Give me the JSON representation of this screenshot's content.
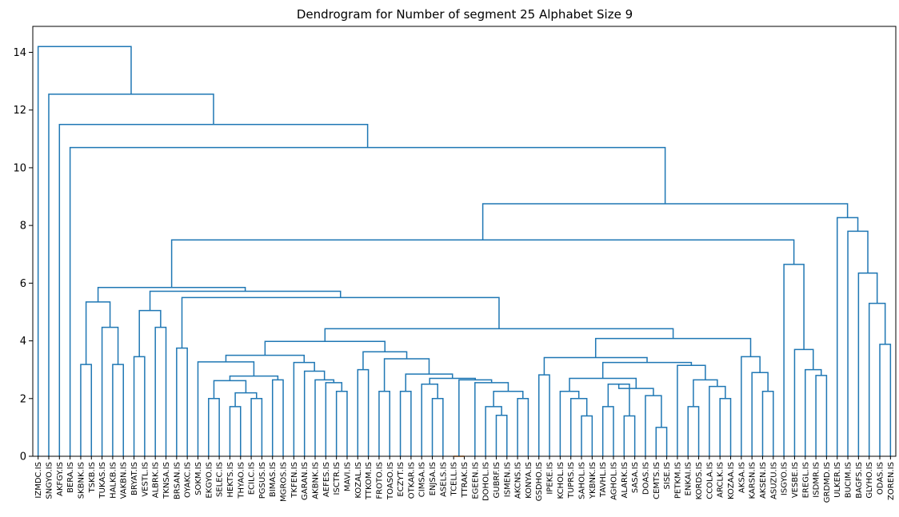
{
  "chart_data": {
    "type": "dendrogram",
    "title": "Dendrogram for Number of segment 25 Alphabet Size 9",
    "color": "#1f77b4",
    "leaves": [
      "IZMDC.IS",
      "SNGYO.IS",
      "AKFGY.IS",
      "BERA.IS",
      "SKBNK.IS",
      "TSKB.IS",
      "TUKAS.IS",
      "HALKB.IS",
      "VAKBN.IS",
      "BRYAT.IS",
      "VESTL.IS",
      "ALBRK.IS",
      "TKNSA.IS",
      "BRSAN.IS",
      "OYAKC.IS",
      "SOKM.IS",
      "EKGYO.IS",
      "SELEC.IS",
      "HEKTS.IS",
      "THYAO.IS",
      "ECILC.IS",
      "PGSUS.IS",
      "BIMAS.IS",
      "MGROS.IS",
      "TKFEN.IS",
      "GARAN.IS",
      "AKBNK.IS",
      "AEFES.IS",
      "ISCTR.IS",
      "MAVI.IS",
      "KOZAL.IS",
      "TTKOM.IS",
      "FROTO.IS",
      "TOASO.IS",
      "ECZYT.IS",
      "OTKAR.IS",
      "CIMSA.IS",
      "ENJSA.IS",
      "ASELS.IS",
      "TCELL.IS",
      "TTRAK.IS",
      "EGEEN.IS",
      "DOHOL.IS",
      "GUBRF.IS",
      "ISMEN.IS",
      "AKCNS.IS",
      "KONYA.IS",
      "GSDHO.IS",
      "IPEKE.IS",
      "KCHOL.IS",
      "TUPRS.IS",
      "SAHOL.IS",
      "YKBNK.IS",
      "TAVHL.IS",
      "AGHOL.IS",
      "ALARK.IS",
      "SASA.IS",
      "DOAS.IS",
      "CEMTS.IS",
      "SISE.IS",
      "PETKM.IS",
      "ENKAI.IS",
      "KORDS.IS",
      "CCOLA.IS",
      "ARCLK.IS",
      "KOZAA.IS",
      "AKSA.IS",
      "KARSN.IS",
      "AKSEN.IS",
      "ASUZU.IS",
      "ISGYO.IS",
      "VESBE.IS",
      "EREGL.IS",
      "ISDMR.IS",
      "GRDMD.IS",
      "ULKER.IS",
      "BUCIM.IS",
      "BAGFS.IS",
      "GLYHO.IS",
      "ODAS.IS",
      "ZOREN.IS"
    ],
    "merges": [
      {
        "children": [
          4,
          5
        ],
        "height": 3.18
      },
      {
        "children": [
          7,
          8
        ],
        "height": 3.18
      },
      {
        "children": [
          6,
          82
        ],
        "height": 4.47
      },
      {
        "children": [
          81,
          83
        ],
        "height": 5.35
      },
      {
        "children": [
          9,
          10
        ],
        "height": 3.45
      },
      {
        "children": [
          11,
          12
        ],
        "height": 4.47
      },
      {
        "children": [
          85,
          86
        ],
        "height": 5.05
      },
      {
        "children": [
          13,
          14
        ],
        "height": 3.75
      },
      {
        "children": [
          16,
          17
        ],
        "height": 2.0
      },
      {
        "children": [
          18,
          19
        ],
        "height": 1.72
      },
      {
        "children": [
          20,
          21
        ],
        "height": 2.0
      },
      {
        "children": [
          90,
          91
        ],
        "height": 2.2
      },
      {
        "children": [
          89,
          92
        ],
        "height": 2.62
      },
      {
        "children": [
          22,
          23
        ],
        "height": 2.65
      },
      {
        "children": [
          93,
          94
        ],
        "height": 2.78
      },
      {
        "children": [
          15,
          95
        ],
        "height": 3.27
      },
      {
        "children": [
          28,
          29
        ],
        "height": 2.25
      },
      {
        "children": [
          27,
          97
        ],
        "height": 2.55
      },
      {
        "children": [
          26,
          98
        ],
        "height": 2.65
      },
      {
        "children": [
          25,
          99
        ],
        "height": 2.95
      },
      {
        "children": [
          24,
          100
        ],
        "height": 3.25
      },
      {
        "children": [
          96,
          101
        ],
        "height": 3.5
      },
      {
        "children": [
          30,
          31
        ],
        "height": 3.0
      },
      {
        "children": [
          32,
          33
        ],
        "height": 2.25
      },
      {
        "children": [
          34,
          35
        ],
        "height": 2.25
      },
      {
        "children": [
          37,
          38
        ],
        "height": 2.0
      },
      {
        "children": [
          36,
          106
        ],
        "height": 2.5
      },
      {
        "children": [
          39,
          40
        ],
        "height": 0,
        "color": "#ff7f0e"
      },
      {
        "children": [
          43,
          44
        ],
        "height": 1.42
      },
      {
        "children": [
          42,
          109
        ],
        "height": 1.72
      },
      {
        "children": [
          45,
          46
        ],
        "height": 2.0
      },
      {
        "children": [
          110,
          111
        ],
        "height": 2.25
      },
      {
        "children": [
          41,
          112
        ],
        "height": 2.55
      },
      {
        "children": [
          108,
          113
        ],
        "height": 2.65
      },
      {
        "children": [
          107,
          114
        ],
        "height": 2.7
      },
      {
        "children": [
          105,
          115
        ],
        "height": 2.85
      },
      {
        "children": [
          104,
          116
        ],
        "height": 3.38
      },
      {
        "children": [
          103,
          117
        ],
        "height": 3.62
      },
      {
        "children": [
          102,
          118
        ],
        "height": 3.98
      },
      {
        "children": [
          47,
          48
        ],
        "height": 2.82
      },
      {
        "children": [
          51,
          52
        ],
        "height": 1.4
      },
      {
        "children": [
          50,
          121
        ],
        "height": 2.0
      },
      {
        "children": [
          49,
          122
        ],
        "height": 2.25
      },
      {
        "children": [
          53,
          54
        ],
        "height": 1.72
      },
      {
        "children": [
          55,
          56
        ],
        "height": 1.4
      },
      {
        "children": [
          124,
          125
        ],
        "height": 2.5
      },
      {
        "children": [
          58,
          59
        ],
        "height": 1.0
      },
      {
        "children": [
          57,
          127
        ],
        "height": 2.1
      },
      {
        "children": [
          126,
          128
        ],
        "height": 2.35
      },
      {
        "children": [
          123,
          129
        ],
        "height": 2.7
      },
      {
        "children": [
          61,
          62
        ],
        "height": 1.72
      },
      {
        "children": [
          64,
          65
        ],
        "height": 2.0
      },
      {
        "children": [
          63,
          132
        ],
        "height": 2.42
      },
      {
        "children": [
          131,
          133
        ],
        "height": 2.65
      },
      {
        "children": [
          60,
          134
        ],
        "height": 3.15
      },
      {
        "children": [
          130,
          135
        ],
        "height": 3.25
      },
      {
        "children": [
          120,
          136
        ],
        "height": 3.42
      },
      {
        "children": [
          68,
          69
        ],
        "height": 2.25
      },
      {
        "children": [
          67,
          138
        ],
        "height": 2.9
      },
      {
        "children": [
          66,
          139
        ],
        "height": 3.45
      },
      {
        "children": [
          137,
          140
        ],
        "height": 4.08
      },
      {
        "children": [
          119,
          141
        ],
        "height": 4.42
      },
      {
        "children": [
          88,
          142
        ],
        "height": 5.5
      },
      {
        "children": [
          87,
          143
        ],
        "height": 5.72
      },
      {
        "children": [
          84,
          144
        ],
        "height": 5.85
      },
      {
        "children": [
          73,
          74
        ],
        "height": 2.8
      },
      {
        "children": [
          72,
          146
        ],
        "height": 3.0
      },
      {
        "children": [
          71,
          147
        ],
        "height": 3.7
      },
      {
        "children": [
          70,
          148
        ],
        "height": 6.65
      },
      {
        "children": [
          145,
          149
        ],
        "height": 7.5
      },
      {
        "children": [
          79,
          80
        ],
        "height": 3.88
      },
      {
        "children": [
          78,
          151
        ],
        "height": 5.3
      },
      {
        "children": [
          77,
          152
        ],
        "height": 6.35
      },
      {
        "children": [
          76,
          153
        ],
        "height": 7.8
      },
      {
        "children": [
          75,
          154
        ],
        "height": 8.27
      },
      {
        "children": [
          150,
          155
        ],
        "height": 8.75
      },
      {
        "children": [
          3,
          156
        ],
        "height": 10.7
      },
      {
        "children": [
          2,
          157
        ],
        "height": 11.5
      },
      {
        "children": [
          1,
          158
        ],
        "height": 12.55
      },
      {
        "children": [
          0,
          159
        ],
        "height": 14.2
      }
    ],
    "ylim": [
      0,
      14.9
    ],
    "yticks": [
      0,
      2,
      4,
      6,
      8,
      10,
      12,
      14
    ]
  }
}
